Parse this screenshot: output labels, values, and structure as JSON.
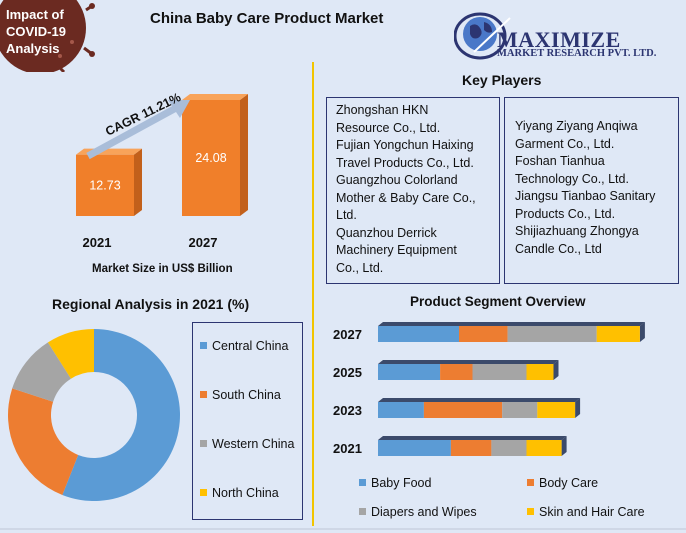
{
  "badge": {
    "line1": "Impact of",
    "line2": "COVID-19",
    "line3": "Analysis"
  },
  "title": "China Baby Care Product Market",
  "logo": {
    "name": "MAXIMIZE",
    "sub": "MARKET RESEARCH PVT. LTD."
  },
  "colors": {
    "bar_orange": "#f07f2a",
    "bar_orange_dark": "#c2601b",
    "bar_orange_top": "#f8a35a",
    "central": "#5b9bd5",
    "south": "#ed7d31",
    "western": "#a5a5a5",
    "north": "#ffc000",
    "navy": "#2c3571",
    "divider": "#f2c500",
    "covid_bg": "#6b2a21"
  },
  "key_players": {
    "title": "Key Players",
    "left": [
      "Zhongshan HKN",
      "Resource Co., Ltd.",
      "Fujian Yongchun Haixing",
      "Travel Products Co., Ltd.",
      "Guangzhou Colorland",
      "Mother & Baby Care Co.,",
      "Ltd.",
      "Quanzhou Derrick",
      "Machinery Equipment",
      "Co., Ltd."
    ],
    "right": [
      "Yiyang Ziyang Anqiwa",
      "Garment Co., Ltd.",
      "Foshan Tianhua",
      "Technology Co., Ltd.",
      "Jiangsu Tianbao Sanitary",
      "Products Co., Ltd.",
      "Shijiazhuang Zhongya",
      "Candle Co., Ltd"
    ]
  },
  "chart_data": [
    {
      "type": "bar",
      "categories": [
        "2021",
        "2027"
      ],
      "values": [
        12.73,
        24.08
      ],
      "value_labels": [
        "12.73",
        "24.08"
      ],
      "xlabel": "Market Size in US$ Billion",
      "annotation": "CAGR 11.21%"
    },
    {
      "type": "pie",
      "title": "Regional Analysis in 2021 (%)",
      "labels": [
        "Central China",
        "South China",
        "Western China",
        "North China"
      ],
      "values": [
        56,
        24,
        11,
        9
      ],
      "legend_position": "right"
    },
    {
      "type": "bar",
      "orientation": "horizontal",
      "stacked": true,
      "title": "Product Segment Overview",
      "categories": [
        "2027",
        "2025",
        "2023",
        "2021"
      ],
      "series": [
        {
          "name": "Baby Food",
          "values": [
            30,
            23,
            17,
            27
          ]
        },
        {
          "name": "Body Care",
          "values": [
            18,
            12,
            29,
            15
          ]
        },
        {
          "name": "Diapers and Wipes",
          "values": [
            33,
            20,
            13,
            13
          ]
        },
        {
          "name": "Skin and Hair Care",
          "values": [
            16,
            10,
            14,
            13
          ]
        }
      ],
      "legend_position": "bottom"
    }
  ]
}
